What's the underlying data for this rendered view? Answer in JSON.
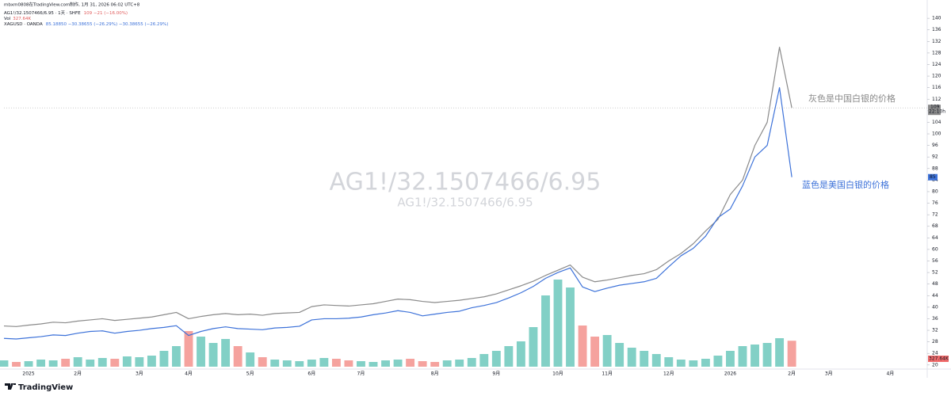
{
  "chart_data": {
    "type": "line",
    "title": "mbxm0808在TradingView.com制作, 1月 31, 2026 06:02 UTC+8",
    "watermark": "AG1!/32.1507466/6.95",
    "categories": [
      null,
      null,
      "2025",
      null,
      null,
      null,
      "2月",
      null,
      null,
      null,
      null,
      "3月",
      null,
      null,
      null,
      "4月",
      null,
      null,
      null,
      null,
      "5月",
      null,
      null,
      null,
      null,
      "6月",
      null,
      null,
      null,
      "7月",
      null,
      null,
      null,
      null,
      null,
      "8月",
      null,
      null,
      null,
      null,
      "9月",
      null,
      null,
      null,
      null,
      "10月",
      null,
      null,
      null,
      "11月",
      null,
      null,
      null,
      null,
      "12月",
      null,
      null,
      null,
      null,
      "2026",
      null,
      null,
      null,
      null,
      "2月",
      null,
      null,
      "3月",
      null,
      null,
      null,
      null,
      "4月",
      null,
      null,
      null
    ],
    "ylim": [
      19.4,
      143.6
    ],
    "yticks": [
      20,
      24,
      28,
      32,
      36,
      40,
      44,
      48,
      52,
      56,
      60,
      64,
      68,
      72,
      76,
      80,
      84,
      88,
      92,
      96,
      100,
      104,
      108,
      112,
      116,
      120,
      124,
      128,
      132,
      136,
      140
    ],
    "grid": false,
    "series": [
      {
        "name": "AG1!/32.1507466/6.95 · 1天 · SHFE",
        "info": "109 −21 (−16.00%)",
        "color": "#8a8a8a",
        "countdown": "22:10h",
        "values": [
          33.5,
          33.3,
          33.8,
          34.2,
          34.8,
          34.6,
          35.2,
          35.6,
          36.0,
          35.4,
          35.8,
          36.2,
          36.6,
          37.4,
          38.2,
          36.0,
          36.8,
          37.4,
          37.8,
          37.4,
          37.6,
          37.2,
          37.8,
          38.0,
          38.2,
          40.2,
          40.8,
          40.6,
          40.4,
          40.8,
          41.2,
          42.0,
          42.8,
          42.6,
          42.0,
          41.6,
          42.0,
          42.4,
          43.0,
          43.6,
          44.6,
          46.0,
          47.4,
          49.0,
          51.0,
          52.8,
          54.6,
          50.4,
          48.8,
          49.4,
          50.2,
          51.0,
          51.6,
          53.0,
          56.0,
          58.6,
          62.0,
          66.4,
          70.4,
          79.0,
          84.0,
          96.0,
          104.0,
          130.0,
          109,
          null,
          null,
          null,
          null,
          null,
          null,
          null,
          null,
          null,
          null,
          null
        ]
      },
      {
        "name": "XAGUSD · OANDA",
        "info": "85.18850 −30.38655 (−26.29%) −30.38655 (−26.29%)",
        "color": "#3d72d9",
        "values": [
          29.2,
          29.0,
          29.4,
          29.8,
          30.4,
          30.2,
          31.0,
          31.6,
          31.8,
          31.0,
          31.6,
          32.0,
          32.6,
          33.0,
          33.6,
          30.2,
          31.6,
          32.6,
          33.2,
          32.6,
          32.4,
          32.2,
          32.8,
          33.0,
          33.4,
          35.6,
          36.0,
          36.0,
          36.2,
          36.6,
          37.4,
          38.0,
          38.8,
          38.2,
          37.0,
          37.6,
          38.2,
          38.6,
          39.8,
          40.6,
          41.6,
          43.2,
          45.0,
          47.2,
          50.0,
          52.0,
          53.6,
          47.0,
          45.4,
          46.6,
          47.6,
          48.2,
          48.8,
          50.0,
          54.0,
          57.8,
          60.4,
          64.6,
          71.0,
          74.0,
          82.0,
          92.0,
          96.0,
          116.0,
          85,
          null,
          null,
          null,
          null,
          null,
          null,
          null,
          null,
          null,
          null,
          null
        ]
      }
    ],
    "volume": {
      "name": "Vol",
      "last_value_label": "327.64K",
      "up_color": "#82d0c6",
      "down_color": "#f5a29e",
      "values": [
        80,
        60,
        70,
        90,
        80,
        100,
        120,
        90,
        110,
        100,
        130,
        120,
        140,
        200,
        260,
        450,
        380,
        300,
        350,
        260,
        180,
        120,
        90,
        80,
        70,
        90,
        110,
        100,
        80,
        70,
        60,
        80,
        90,
        100,
        70,
        60,
        80,
        90,
        110,
        160,
        200,
        260,
        320,
        500,
        900,
        1100,
        1000,
        520,
        380,
        400,
        300,
        240,
        200,
        160,
        120,
        90,
        80,
        100,
        140,
        200,
        260,
        280,
        300,
        360,
        327.64,
        null,
        null,
        null,
        null,
        null,
        null,
        null,
        null,
        null,
        null,
        null
      ]
    },
    "annotations": [
      {
        "text": "灰色是中国白银的价格",
        "color": "#8a8a8a"
      },
      {
        "text": "蓝色是美国白银的价格",
        "color": "#3d72d9"
      }
    ]
  },
  "footer": {
    "brand": "TradingView"
  }
}
